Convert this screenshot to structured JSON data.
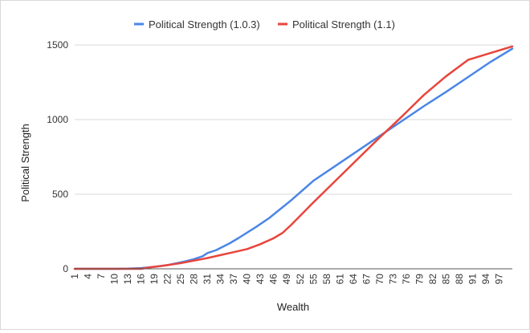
{
  "chart_data": {
    "type": "line",
    "title": "",
    "xlabel": "Wealth",
    "ylabel": "Political Strength",
    "ylim": [
      0,
      1500
    ],
    "yticks": [
      "0",
      "500",
      "1000",
      "1500"
    ],
    "xrange": [
      1,
      100
    ],
    "xticks": [
      "1",
      "4",
      "7",
      "10",
      "13",
      "16",
      "19",
      "22",
      "25",
      "28",
      "31",
      "34",
      "37",
      "40",
      "43",
      "46",
      "49",
      "52",
      "55",
      "58",
      "61",
      "64",
      "67",
      "70",
      "73",
      "76",
      "79",
      "82",
      "85",
      "88",
      "91",
      "94",
      "97"
    ],
    "grid": true,
    "legend_position": "top",
    "series": [
      {
        "name": "Political Strength (1.0.3)",
        "color": "#4a86e8",
        "points": [
          [
            1,
            0
          ],
          [
            10,
            0
          ],
          [
            13,
            1
          ],
          [
            16,
            5
          ],
          [
            18,
            10
          ],
          [
            20,
            17
          ],
          [
            22,
            25
          ],
          [
            24,
            37
          ],
          [
            26,
            50
          ],
          [
            28,
            65
          ],
          [
            30,
            85
          ],
          [
            31,
            105
          ],
          [
            33,
            125
          ],
          [
            36,
            170
          ],
          [
            38,
            205
          ],
          [
            42,
            280
          ],
          [
            45,
            340
          ],
          [
            50,
            460
          ],
          [
            55,
            590
          ],
          [
            60,
            690
          ],
          [
            65,
            790
          ],
          [
            70,
            890
          ],
          [
            75,
            990
          ],
          [
            80,
            1090
          ],
          [
            85,
            1185
          ],
          [
            90,
            1285
          ],
          [
            95,
            1385
          ],
          [
            100,
            1475
          ]
        ]
      },
      {
        "name": "Political Strength (1.1)",
        "color": "#e8453c",
        "points": [
          [
            1,
            0
          ],
          [
            16,
            0
          ],
          [
            18,
            10
          ],
          [
            20,
            17
          ],
          [
            22,
            25
          ],
          [
            25,
            38
          ],
          [
            28,
            55
          ],
          [
            31,
            72
          ],
          [
            34,
            92
          ],
          [
            37,
            112
          ],
          [
            40,
            132
          ],
          [
            43,
            165
          ],
          [
            46,
            205
          ],
          [
            48,
            240
          ],
          [
            50,
            295
          ],
          [
            55,
            445
          ],
          [
            60,
            590
          ],
          [
            65,
            735
          ],
          [
            70,
            880
          ],
          [
            75,
            1020
          ],
          [
            80,
            1165
          ],
          [
            85,
            1290
          ],
          [
            90,
            1400
          ],
          [
            95,
            1445
          ],
          [
            100,
            1490
          ]
        ]
      }
    ]
  }
}
